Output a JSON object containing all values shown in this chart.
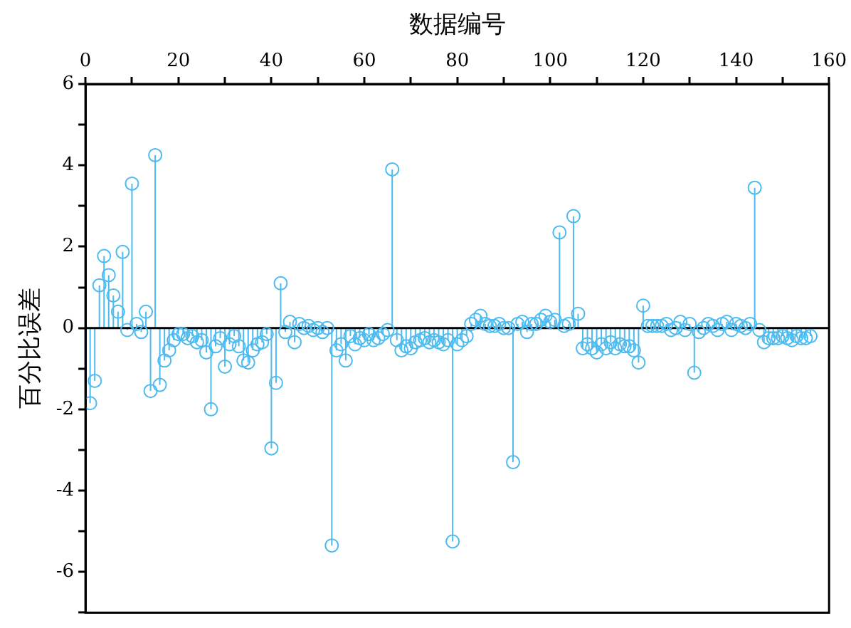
{
  "chart_data": {
    "type": "lollipop",
    "xlabel": "数据编号",
    "ylabel": "百分比误差",
    "xlim": [
      0,
      160
    ],
    "xticks": [
      0,
      {
        "value": 10,
        "label": null
      },
      20,
      {
        "value": 30,
        "label": null
      },
      40,
      {
        "value": 50,
        "label": null
      },
      60,
      {
        "value": 70,
        "label": null
      },
      80,
      {
        "value": 90,
        "label": null
      },
      100,
      {
        "value": 110,
        "label": null
      },
      120,
      {
        "value": 130,
        "label": null
      },
      140,
      {
        "value": 150,
        "label": null
      },
      160
    ],
    "ylim": [
      -7,
      6
    ],
    "yticks": [
      {
        "value": -7,
        "label": null
      },
      -6,
      {
        "value": -5,
        "label": null
      },
      -4,
      {
        "value": -3,
        "label": null
      },
      -2,
      {
        "value": -1,
        "label": null
      },
      0,
      {
        "value": 1,
        "label": null
      },
      2,
      {
        "value": 3,
        "label": null
      },
      4,
      {
        "value": 5,
        "label": null
      },
      6
    ],
    "grid": false,
    "legend": false,
    "marker": "circle",
    "ref_lines": [
      {
        "axis": "y",
        "value": 0,
        "color": "#000000"
      }
    ],
    "series": [
      {
        "color": "#4dbbf0",
        "x": [
          1,
          2,
          3,
          4,
          5,
          6,
          7,
          8,
          9,
          10,
          11,
          12,
          13,
          14,
          15,
          16,
          17,
          18,
          19,
          20,
          21,
          22,
          23,
          24,
          25,
          26,
          27,
          28,
          29,
          30,
          31,
          32,
          33,
          34,
          35,
          36,
          37,
          38,
          39,
          40,
          41,
          42,
          43,
          44,
          45,
          46,
          47,
          48,
          49,
          50,
          51,
          52,
          53,
          54,
          55,
          56,
          57,
          58,
          59,
          60,
          61,
          62,
          63,
          64,
          65,
          66,
          67,
          68,
          69,
          70,
          71,
          72,
          73,
          74,
          75,
          76,
          77,
          78,
          79,
          80,
          81,
          82,
          83,
          84,
          85,
          86,
          87,
          88,
          89,
          90,
          91,
          92,
          93,
          94,
          95,
          96,
          97,
          98,
          99,
          100,
          101,
          102,
          103,
          104,
          105,
          106,
          107,
          108,
          109,
          110,
          111,
          112,
          113,
          114,
          115,
          116,
          117,
          118,
          119,
          120,
          121,
          122,
          123,
          124,
          125,
          126,
          127,
          128,
          129,
          130,
          131,
          132,
          133,
          134,
          135,
          136,
          137,
          138,
          139,
          140,
          141,
          142,
          143,
          144,
          145,
          146,
          147,
          148,
          149,
          150,
          151,
          152,
          153,
          154,
          155,
          156
        ],
        "values": [
          -1.85,
          -1.3,
          1.05,
          1.77,
          1.3,
          0.8,
          0.4,
          1.87,
          -0.05,
          3.55,
          0.1,
          -0.1,
          0.4,
          -1.55,
          4.25,
          -1.4,
          -0.8,
          -0.55,
          -0.3,
          -0.15,
          -0.15,
          -0.25,
          -0.2,
          -0.35,
          -0.3,
          -0.6,
          -2.0,
          -0.45,
          -0.25,
          -0.95,
          -0.4,
          -0.2,
          -0.45,
          -0.8,
          -0.85,
          -0.55,
          -0.4,
          -0.35,
          -0.15,
          -2.96,
          -1.35,
          1.1,
          -0.1,
          0.15,
          -0.35,
          0.1,
          0.0,
          0.05,
          -0.05,
          0.0,
          -0.1,
          0.0,
          -5.35,
          -0.55,
          -0.4,
          -0.8,
          -0.2,
          -0.4,
          -0.25,
          -0.3,
          -0.15,
          -0.3,
          -0.25,
          -0.15,
          -0.05,
          3.9,
          -0.3,
          -0.55,
          -0.45,
          -0.5,
          -0.35,
          -0.3,
          -0.25,
          -0.35,
          -0.3,
          -0.35,
          -0.4,
          -0.3,
          -5.25,
          -0.4,
          -0.3,
          -0.2,
          0.1,
          0.2,
          0.3,
          0.1,
          0.05,
          0.05,
          0.1,
          0.0,
          0.0,
          -3.3,
          0.1,
          0.15,
          -0.1,
          0.1,
          0.1,
          0.2,
          0.3,
          0.15,
          0.2,
          2.35,
          0.05,
          0.1,
          2.75,
          0.35,
          -0.5,
          -0.4,
          -0.5,
          -0.6,
          -0.4,
          -0.5,
          -0.35,
          -0.5,
          -0.4,
          -0.45,
          -0.45,
          -0.55,
          -0.85,
          0.55,
          0.05,
          0.05,
          0.05,
          0.05,
          0.1,
          -0.05,
          0.0,
          0.15,
          -0.05,
          0.1,
          -1.1,
          -0.1,
          0.0,
          0.1,
          0.05,
          -0.05,
          0.1,
          0.15,
          -0.05,
          0.1,
          0.05,
          0.0,
          0.1,
          3.45,
          -0.05,
          -0.35,
          -0.25,
          -0.25,
          -0.25,
          -0.2,
          -0.25,
          -0.3,
          -0.2,
          -0.25,
          -0.25,
          -0.2
        ]
      }
    ]
  }
}
